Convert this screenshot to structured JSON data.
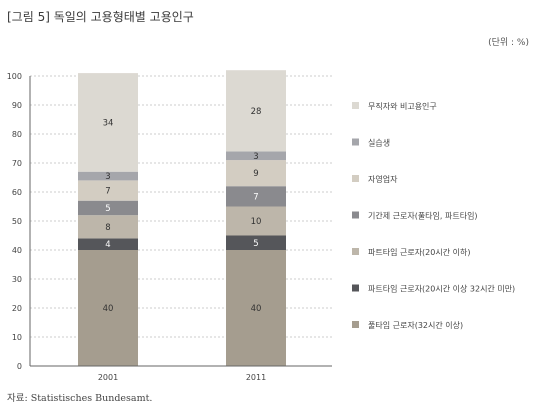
{
  "title": "[그림 5] 독일의 고용형태별 고용인구",
  "unit": "(단위 : %)",
  "source": "자료: Statistisches Bundesamt.",
  "chart_data": {
    "type": "stacked_bar",
    "categories": [
      "2001",
      "2011"
    ],
    "ylim": [
      0,
      100
    ],
    "yticks": [
      0,
      10,
      20,
      30,
      40,
      50,
      60,
      70,
      80,
      90,
      100
    ],
    "grid": true,
    "legend_position": "right",
    "series": [
      {
        "name": "풀타임 근로자(32시간 이상)",
        "values": [
          40,
          40
        ],
        "color": "#a59d8f",
        "label_color": "#333333"
      },
      {
        "name": "파트타임 근로자(20시간 이상 32시간 미만)",
        "values": [
          4,
          5
        ],
        "color": "#55565a",
        "label_color": "#ffffff"
      },
      {
        "name": "파트타임 근로자(20시간 이하)",
        "values": [
          8,
          10
        ],
        "color": "#bdb6aa",
        "label_color": "#333333"
      },
      {
        "name": "기간제 근로자(풀타임, 파트타임)",
        "values": [
          5,
          7
        ],
        "color": "#8a8a8e",
        "label_color": "#ffffff"
      },
      {
        "name": "자영업자",
        "values": [
          7,
          9
        ],
        "color": "#d3cdc2",
        "label_color": "#333333"
      },
      {
        "name": "실습생",
        "values": [
          3,
          3
        ],
        "color": "#a5a6ab",
        "label_color": "#333333"
      },
      {
        "name": "무직자와 비고용인구",
        "values": [
          34,
          28
        ],
        "color": "#dcd9d2",
        "label_color": "#333333"
      }
    ],
    "legend_order": [
      6,
      5,
      4,
      3,
      2,
      1,
      0
    ]
  }
}
